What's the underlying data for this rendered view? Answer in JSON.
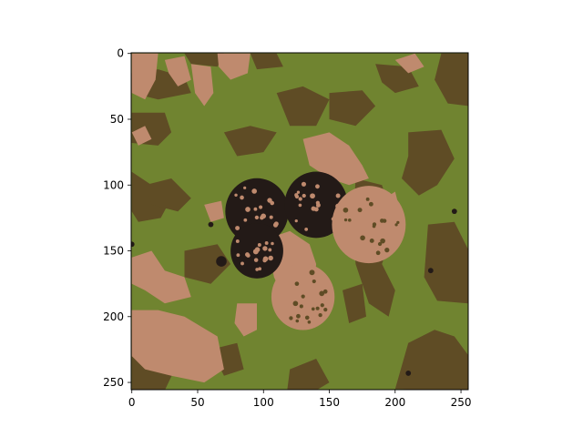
{
  "chart_data": {
    "type": "heatmap",
    "title": "",
    "xlabel": "",
    "ylabel": "",
    "image_size": [
      256,
      256
    ],
    "xlim": [
      -0.5,
      255.5
    ],
    "ylim": [
      255.5,
      -0.5
    ],
    "x_ticks": [
      0,
      50,
      100,
      150,
      200,
      250
    ],
    "y_ticks": [
      0,
      50,
      100,
      150,
      200,
      250
    ],
    "x_tick_labels": [
      "0",
      "50",
      "100",
      "150",
      "200",
      "250"
    ],
    "y_tick_labels": [
      "0",
      "50",
      "100",
      "150",
      "200",
      "250"
    ],
    "palette": {
      "background_green": "#708430",
      "dark_olive": "#5f4c25",
      "pink_tan": "#bf8a6e",
      "near_black": "#231a17"
    },
    "description_regions": [
      {
        "shape": "rect",
        "x": [
          0,
          256
        ],
        "y": [
          0,
          256
        ],
        "color": "background_green"
      }
    ],
    "berries": [
      {
        "cx": 95,
        "cy": 120,
        "r": 24
      },
      {
        "cx": 140,
        "cy": 115,
        "r": 24
      },
      {
        "cx": 95,
        "cy": 150,
        "r": 20
      },
      {
        "cx": 130,
        "cy": 185,
        "r": 24
      },
      {
        "cx": 180,
        "cy": 130,
        "r": 28
      }
    ]
  }
}
